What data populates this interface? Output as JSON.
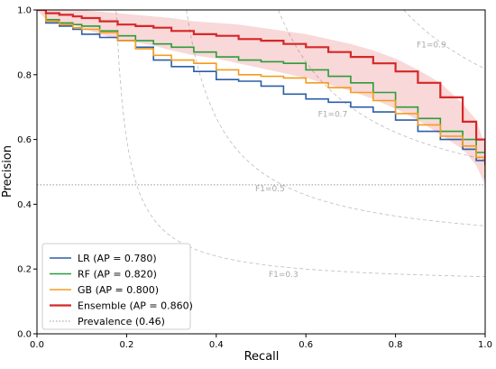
{
  "chart_data": {
    "type": "line",
    "title": "",
    "xlabel": "Recall",
    "ylabel": "Precision",
    "xlim": [
      0.0,
      1.0
    ],
    "ylim": [
      0.0,
      1.0
    ],
    "xticks": [
      "0.0",
      "0.2",
      "0.4",
      "0.6",
      "0.8",
      "1.0"
    ],
    "yticks": [
      "0.0",
      "0.2",
      "0.4",
      "0.6",
      "0.8",
      "1.0"
    ],
    "grid": false,
    "legend_position": "lower-left",
    "series": [
      {
        "name": "LR (AP = 0.780)",
        "color": "#2b5ea7",
        "x": [
          0,
          0.02,
          0.05,
          0.08,
          0.1,
          0.14,
          0.18,
          0.22,
          0.26,
          0.3,
          0.35,
          0.4,
          0.45,
          0.5,
          0.55,
          0.6,
          0.65,
          0.7,
          0.75,
          0.8,
          0.85,
          0.9,
          0.95,
          0.98,
          1.0
        ],
        "y": [
          1.0,
          0.96,
          0.95,
          0.94,
          0.925,
          0.915,
          0.905,
          0.885,
          0.845,
          0.825,
          0.81,
          0.785,
          0.78,
          0.765,
          0.74,
          0.725,
          0.715,
          0.7,
          0.685,
          0.66,
          0.625,
          0.6,
          0.57,
          0.535,
          0.48
        ]
      },
      {
        "name": "RF (AP = 0.820)",
        "color": "#2a9d3a",
        "x": [
          0,
          0.02,
          0.05,
          0.08,
          0.1,
          0.14,
          0.18,
          0.22,
          0.26,
          0.3,
          0.35,
          0.4,
          0.45,
          0.5,
          0.55,
          0.6,
          0.65,
          0.7,
          0.75,
          0.8,
          0.85,
          0.9,
          0.95,
          0.98,
          1.0
        ],
        "y": [
          1.0,
          0.97,
          0.96,
          0.955,
          0.95,
          0.935,
          0.92,
          0.905,
          0.895,
          0.885,
          0.87,
          0.855,
          0.845,
          0.84,
          0.835,
          0.815,
          0.795,
          0.775,
          0.745,
          0.7,
          0.665,
          0.625,
          0.6,
          0.56,
          0.5
        ]
      },
      {
        "name": "GB (AP = 0.800)",
        "color": "#f39c1e",
        "x": [
          0,
          0.02,
          0.05,
          0.08,
          0.1,
          0.14,
          0.18,
          0.22,
          0.26,
          0.3,
          0.35,
          0.4,
          0.45,
          0.5,
          0.55,
          0.6,
          0.65,
          0.7,
          0.75,
          0.8,
          0.85,
          0.9,
          0.95,
          0.98,
          1.0
        ],
        "y": [
          1.0,
          0.965,
          0.955,
          0.945,
          0.94,
          0.93,
          0.905,
          0.88,
          0.86,
          0.845,
          0.835,
          0.815,
          0.8,
          0.795,
          0.79,
          0.775,
          0.76,
          0.745,
          0.72,
          0.68,
          0.645,
          0.61,
          0.58,
          0.545,
          0.49
        ]
      },
      {
        "name": "Ensemble (AP = 0.860)",
        "color": "#d62728",
        "x": [
          0,
          0.02,
          0.05,
          0.08,
          0.1,
          0.14,
          0.18,
          0.22,
          0.26,
          0.3,
          0.35,
          0.4,
          0.45,
          0.5,
          0.55,
          0.6,
          0.65,
          0.7,
          0.75,
          0.8,
          0.85,
          0.9,
          0.95,
          0.98,
          1.0
        ],
        "y": [
          1.0,
          0.99,
          0.985,
          0.98,
          0.975,
          0.965,
          0.955,
          0.95,
          0.945,
          0.935,
          0.925,
          0.92,
          0.91,
          0.905,
          0.895,
          0.885,
          0.87,
          0.855,
          0.835,
          0.81,
          0.775,
          0.73,
          0.655,
          0.6,
          0.52
        ],
        "ci_lower": [
          1.0,
          0.97,
          0.96,
          0.955,
          0.945,
          0.925,
          0.91,
          0.9,
          0.89,
          0.875,
          0.86,
          0.85,
          0.835,
          0.82,
          0.805,
          0.79,
          0.77,
          0.75,
          0.725,
          0.695,
          0.66,
          0.615,
          0.57,
          0.52,
          0.46
        ],
        "ci_upper": [
          1.0,
          1.0,
          1.0,
          1.0,
          1.0,
          0.995,
          0.99,
          0.985,
          0.98,
          0.975,
          0.965,
          0.96,
          0.955,
          0.945,
          0.935,
          0.925,
          0.91,
          0.895,
          0.875,
          0.85,
          0.815,
          0.775,
          0.71,
          0.66,
          0.58
        ]
      }
    ],
    "prevalence": {
      "name": "Prevalence (0.46)",
      "value": 0.46,
      "color": "#999999"
    },
    "iso_f1": [
      {
        "label": "F1=0.3",
        "f": 0.3,
        "label_x": 0.55,
        "label_y": 0.175
      },
      {
        "label": "F1=0.5",
        "f": 0.5,
        "label_x": 0.52,
        "label_y": 0.44
      },
      {
        "label": "F1=0.7",
        "f": 0.7,
        "label_x": 0.66,
        "label_y": 0.67
      },
      {
        "label": "F1=0.9",
        "f": 0.9,
        "label_x": 0.88,
        "label_y": 0.885
      }
    ]
  }
}
